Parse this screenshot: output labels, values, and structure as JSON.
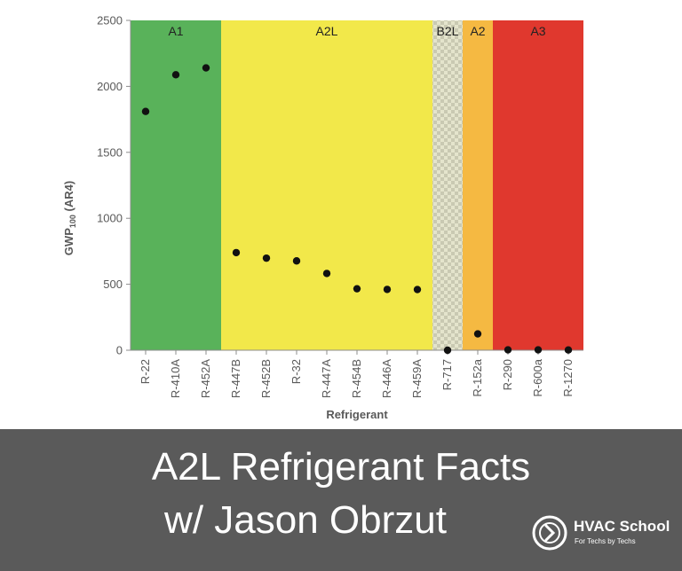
{
  "chart_data": {
    "type": "scatter",
    "categories": [
      "R-22",
      "R-410A",
      "R-452A",
      "R-447B",
      "R-452B",
      "R-32",
      "R-447A",
      "R-454B",
      "R-446A",
      "R-459A",
      "R-717",
      "R-152a",
      "R-290",
      "R-600a",
      "R-1270"
    ],
    "series": [
      {
        "values": [
          1810,
          2088,
          2140,
          740,
          698,
          677,
          582,
          466,
          461,
          460,
          0,
          124,
          3,
          3,
          2
        ]
      }
    ],
    "safety_classes": [
      {
        "label": "A1",
        "from": "R-22",
        "to": "R-452A",
        "color": "#59b25a"
      },
      {
        "label": "A2L",
        "from": "R-447B",
        "to": "R-459A",
        "color": "#f2e84a"
      },
      {
        "label": "B2L",
        "from": "R-717",
        "to": "R-717",
        "color": "#d9d9c0",
        "pattern": "checkered"
      },
      {
        "label": "A2",
        "from": "R-152a",
        "to": "R-152a",
        "color": "#f5b942"
      },
      {
        "label": "A3",
        "from": "R-290",
        "to": "R-1270",
        "color": "#e0382e"
      }
    ],
    "xlabel": "Refrigerant",
    "ylabel": "GWP₁₀₀ (AR4)",
    "ylim": [
      0,
      2500
    ],
    "yticks": [
      0,
      500,
      1000,
      1500,
      2000,
      2500
    ],
    "grid": false,
    "marker_color": "#111111"
  },
  "banner": {
    "title_line1": "A2L Refrigerant Facts",
    "title_line2": "w/ Jason Obrzut",
    "background": "#5a5a5a"
  },
  "brand": {
    "name": "HVAC School",
    "tagline": "For Techs by Techs",
    "logo_icon": "hvac-school-logo-icon"
  }
}
